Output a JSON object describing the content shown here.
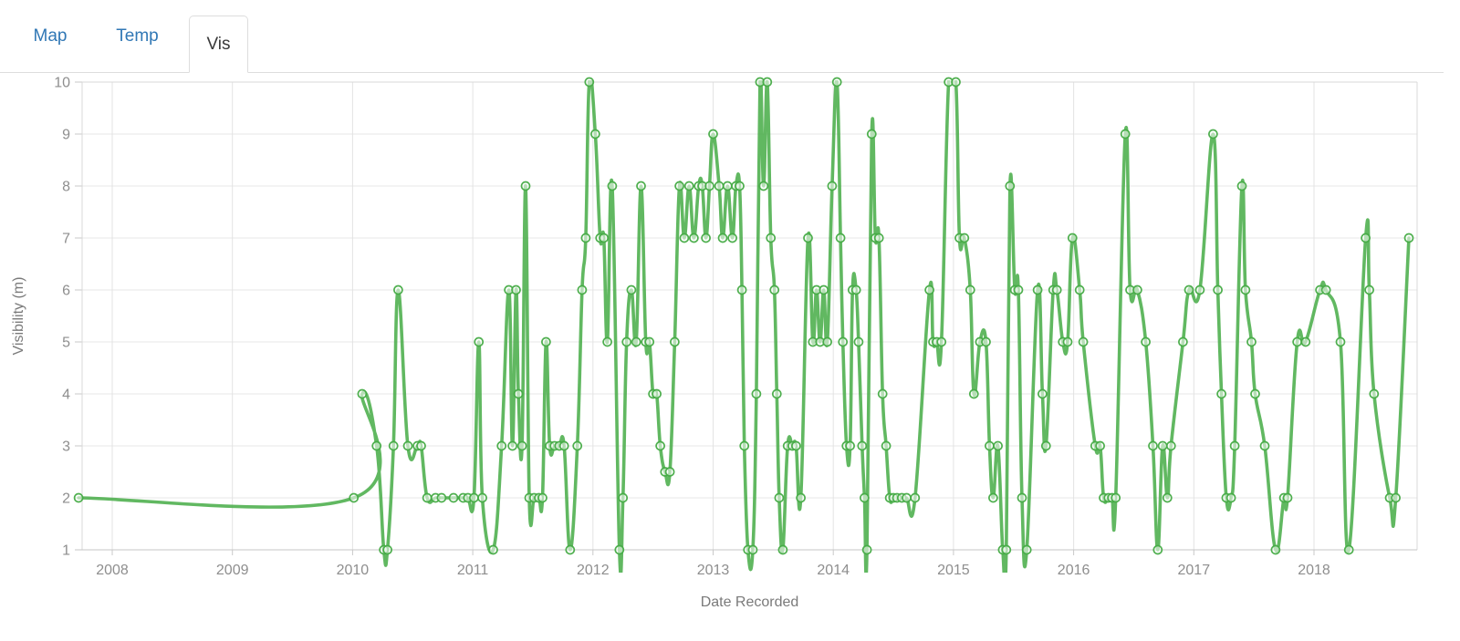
{
  "tabs": {
    "map": "Map",
    "temp": "Temp",
    "vis": "Vis"
  },
  "chart_data": {
    "type": "line",
    "title": "",
    "xlabel": "Date Recorded",
    "ylabel": "Visibility (m)",
    "x_tick_labels": [
      "2008",
      "2009",
      "2010",
      "2011",
      "2012",
      "2013",
      "2014",
      "2015",
      "2016",
      "2017",
      "2018"
    ],
    "x_tick_years": [
      2008,
      2009,
      2010,
      2011,
      2012,
      2013,
      2014,
      2015,
      2016,
      2017,
      2018
    ],
    "y_tick_labels": [
      "1",
      "2",
      "3",
      "4",
      "5",
      "6",
      "7",
      "8",
      "9",
      "10"
    ],
    "y_ticks": [
      1,
      2,
      3,
      4,
      5,
      6,
      7,
      8,
      9,
      10
    ],
    "ylim": [
      1,
      10
    ],
    "xlim": [
      2007.72,
      2018.87
    ],
    "grid": true,
    "legend": "none",
    "line_color": "#45ab45",
    "grid_color": "#e7e7e7",
    "border_color": "#d9d9d9",
    "tick_text_color": "#8e8e8e",
    "axis_title_color": "#7a7a7a",
    "marker_style": "open-circle",
    "series": [
      {
        "name": "Visibility",
        "points": [
          [
            2007.72,
            2
          ],
          [
            2010.01,
            2
          ],
          [
            2010.08,
            4
          ],
          [
            2010.2,
            3
          ],
          [
            2010.26,
            1
          ],
          [
            2010.29,
            1
          ],
          [
            2010.34,
            3
          ],
          [
            2010.38,
            6
          ],
          [
            2010.46,
            3
          ],
          [
            2010.54,
            3
          ],
          [
            2010.57,
            3
          ],
          [
            2010.62,
            2
          ],
          [
            2010.69,
            2
          ],
          [
            2010.74,
            2
          ],
          [
            2010.84,
            2
          ],
          [
            2010.92,
            2
          ],
          [
            2010.96,
            2
          ],
          [
            2011.01,
            2
          ],
          [
            2011.05,
            5
          ],
          [
            2011.08,
            2
          ],
          [
            2011.17,
            1
          ],
          [
            2011.24,
            3
          ],
          [
            2011.3,
            6
          ],
          [
            2011.33,
            3
          ],
          [
            2011.36,
            6
          ],
          [
            2011.38,
            4
          ],
          [
            2011.41,
            3
          ],
          [
            2011.44,
            8
          ],
          [
            2011.47,
            2
          ],
          [
            2011.51,
            2
          ],
          [
            2011.55,
            2
          ],
          [
            2011.58,
            2
          ],
          [
            2011.61,
            5
          ],
          [
            2011.64,
            3
          ],
          [
            2011.68,
            3
          ],
          [
            2011.72,
            3
          ],
          [
            2011.76,
            3
          ],
          [
            2011.81,
            1
          ],
          [
            2011.87,
            3
          ],
          [
            2011.91,
            6
          ],
          [
            2011.94,
            7
          ],
          [
            2011.97,
            10
          ],
          [
            2012.02,
            9
          ],
          [
            2012.06,
            7
          ],
          [
            2012.09,
            7
          ],
          [
            2012.12,
            5
          ],
          [
            2012.16,
            8
          ],
          [
            2012.22,
            1
          ],
          [
            2012.25,
            2
          ],
          [
            2012.28,
            5
          ],
          [
            2012.32,
            6
          ],
          [
            2012.36,
            5
          ],
          [
            2012.4,
            8
          ],
          [
            2012.44,
            5
          ],
          [
            2012.47,
            5
          ],
          [
            2012.5,
            4
          ],
          [
            2012.53,
            4
          ],
          [
            2012.56,
            3
          ],
          [
            2012.6,
            2.5
          ],
          [
            2012.64,
            2.5
          ],
          [
            2012.68,
            5
          ],
          [
            2012.72,
            8
          ],
          [
            2012.76,
            7
          ],
          [
            2012.8,
            8
          ],
          [
            2012.84,
            7
          ],
          [
            2012.88,
            8
          ],
          [
            2012.91,
            8
          ],
          [
            2012.94,
            7
          ],
          [
            2012.97,
            8
          ],
          [
            2013.0,
            9
          ],
          [
            2013.05,
            8
          ],
          [
            2013.08,
            7
          ],
          [
            2013.12,
            8
          ],
          [
            2013.16,
            7
          ],
          [
            2013.19,
            8
          ],
          [
            2013.22,
            8
          ],
          [
            2013.24,
            6
          ],
          [
            2013.26,
            3
          ],
          [
            2013.29,
            1
          ],
          [
            2013.33,
            1
          ],
          [
            2013.36,
            4
          ],
          [
            2013.39,
            10
          ],
          [
            2013.42,
            8
          ],
          [
            2013.45,
            10
          ],
          [
            2013.48,
            7
          ],
          [
            2013.51,
            6
          ],
          [
            2013.53,
            4
          ],
          [
            2013.55,
            2
          ],
          [
            2013.58,
            1
          ],
          [
            2013.62,
            3
          ],
          [
            2013.66,
            3
          ],
          [
            2013.69,
            3
          ],
          [
            2013.73,
            2
          ],
          [
            2013.79,
            7
          ],
          [
            2013.83,
            5
          ],
          [
            2013.86,
            6
          ],
          [
            2013.89,
            5
          ],
          [
            2013.92,
            6
          ],
          [
            2013.95,
            5
          ],
          [
            2013.99,
            8
          ],
          [
            2014.03,
            10
          ],
          [
            2014.06,
            7
          ],
          [
            2014.08,
            5
          ],
          [
            2014.11,
            3
          ],
          [
            2014.14,
            3
          ],
          [
            2014.16,
            6
          ],
          [
            2014.19,
            6
          ],
          [
            2014.21,
            5
          ],
          [
            2014.24,
            3
          ],
          [
            2014.26,
            2
          ],
          [
            2014.28,
            1
          ],
          [
            2014.32,
            9
          ],
          [
            2014.35,
            7
          ],
          [
            2014.38,
            7
          ],
          [
            2014.41,
            4
          ],
          [
            2014.44,
            3
          ],
          [
            2014.47,
            2
          ],
          [
            2014.5,
            2
          ],
          [
            2014.53,
            2
          ],
          [
            2014.57,
            2
          ],
          [
            2014.61,
            2
          ],
          [
            2014.68,
            2
          ],
          [
            2014.8,
            6
          ],
          [
            2014.83,
            5
          ],
          [
            2014.86,
            5
          ],
          [
            2014.9,
            5
          ],
          [
            2014.96,
            10
          ],
          [
            2015.02,
            10
          ],
          [
            2015.05,
            7
          ],
          [
            2015.09,
            7
          ],
          [
            2015.14,
            6
          ],
          [
            2015.17,
            4
          ],
          [
            2015.22,
            5
          ],
          [
            2015.27,
            5
          ],
          [
            2015.3,
            3
          ],
          [
            2015.33,
            2
          ],
          [
            2015.37,
            3
          ],
          [
            2015.41,
            1
          ],
          [
            2015.44,
            1
          ],
          [
            2015.47,
            8
          ],
          [
            2015.51,
            6
          ],
          [
            2015.54,
            6
          ],
          [
            2015.57,
            2
          ],
          [
            2015.61,
            1
          ],
          [
            2015.7,
            6
          ],
          [
            2015.74,
            4
          ],
          [
            2015.77,
            3
          ],
          [
            2015.83,
            6
          ],
          [
            2015.86,
            6
          ],
          [
            2015.91,
            5
          ],
          [
            2015.95,
            5
          ],
          [
            2015.99,
            7
          ],
          [
            2016.05,
            6
          ],
          [
            2016.08,
            5
          ],
          [
            2016.18,
            3
          ],
          [
            2016.22,
            3
          ],
          [
            2016.25,
            2
          ],
          [
            2016.29,
            2
          ],
          [
            2016.32,
            2
          ],
          [
            2016.35,
            2
          ],
          [
            2016.43,
            9
          ],
          [
            2016.47,
            6
          ],
          [
            2016.53,
            6
          ],
          [
            2016.6,
            5
          ],
          [
            2016.66,
            3
          ],
          [
            2016.7,
            1
          ],
          [
            2016.74,
            3
          ],
          [
            2016.78,
            2
          ],
          [
            2016.81,
            3
          ],
          [
            2016.91,
            5
          ],
          [
            2016.96,
            6
          ],
          [
            2017.05,
            6
          ],
          [
            2017.16,
            9
          ],
          [
            2017.2,
            6
          ],
          [
            2017.23,
            4
          ],
          [
            2017.27,
            2
          ],
          [
            2017.31,
            2
          ],
          [
            2017.34,
            3
          ],
          [
            2017.4,
            8
          ],
          [
            2017.43,
            6
          ],
          [
            2017.48,
            5
          ],
          [
            2017.51,
            4
          ],
          [
            2017.59,
            3
          ],
          [
            2017.68,
            1
          ],
          [
            2017.75,
            2
          ],
          [
            2017.78,
            2
          ],
          [
            2017.86,
            5
          ],
          [
            2017.93,
            5
          ],
          [
            2018.05,
            6
          ],
          [
            2018.1,
            6
          ],
          [
            2018.22,
            5
          ],
          [
            2018.29,
            1
          ],
          [
            2018.43,
            7
          ],
          [
            2018.46,
            6
          ],
          [
            2018.5,
            4
          ],
          [
            2018.63,
            2
          ],
          [
            2018.68,
            2
          ],
          [
            2018.79,
            7
          ]
        ]
      }
    ]
  }
}
